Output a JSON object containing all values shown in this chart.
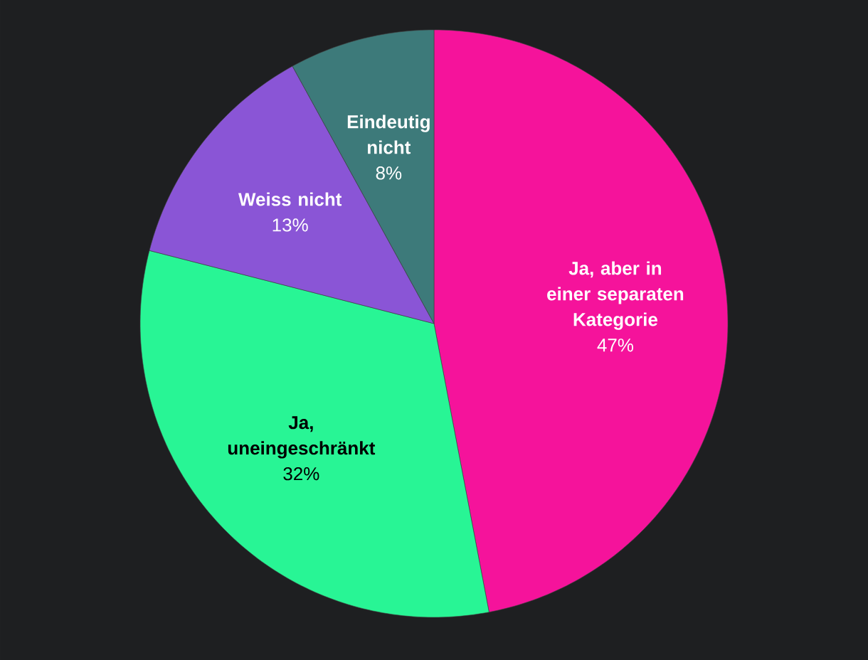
{
  "chart_data": {
    "type": "pie",
    "categories": [
      "Ja, aber in einer separaten Kategorie",
      "Ja, uneingeschränkt",
      "Weiss nicht",
      "Eindeutig nicht"
    ],
    "values": [
      47,
      32,
      13,
      8
    ],
    "value_labels": [
      "47%",
      "32%",
      "13%",
      "8%"
    ],
    "colors": [
      "#f5139b",
      "#28f595",
      "#8a55d6",
      "#3d7a7a"
    ]
  }
}
